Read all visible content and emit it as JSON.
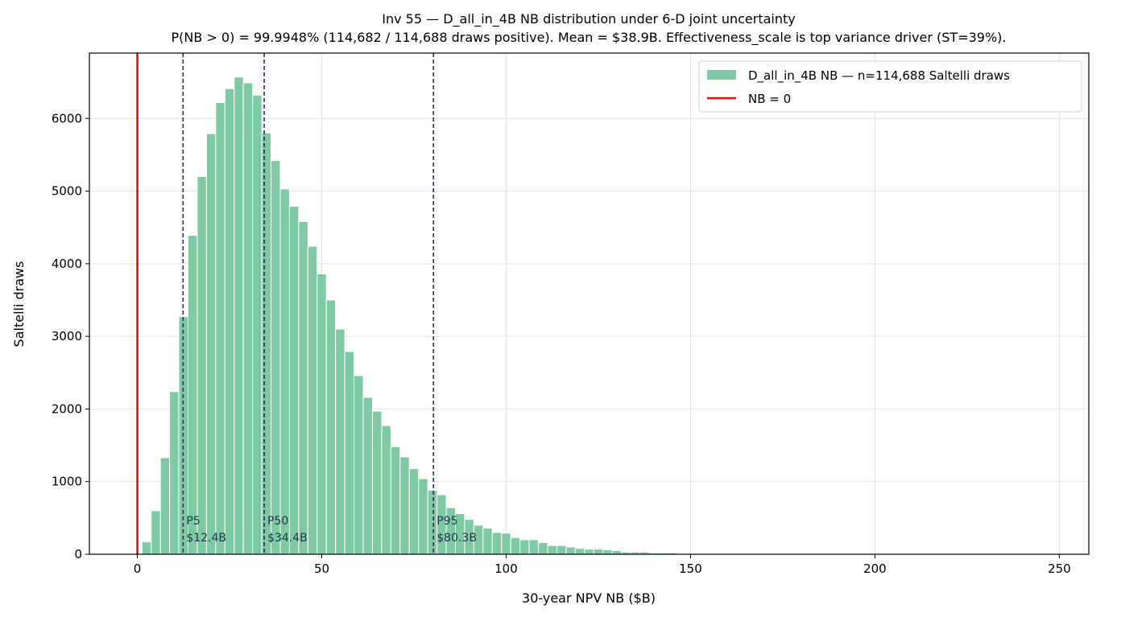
{
  "chart_data": {
    "type": "bar",
    "title": "Inv 55 — D_all_in_4B NB distribution under 6-D joint uncertainty",
    "subtitle": "P(NB > 0) = 99.9948% (114,682 / 114,688 draws positive). Mean = $38.9B. Effectiveness_scale is top variance driver (ST=39%).",
    "xlabel": "30-year NPV NB ($B)",
    "ylabel": "Saltelli draws",
    "xlim": [
      -13,
      258
    ],
    "ylim": [
      0,
      6900
    ],
    "xticks": [
      0,
      50,
      100,
      150,
      200,
      250
    ],
    "yticks": [
      0,
      1000,
      2000,
      3000,
      4000,
      5000,
      6000
    ],
    "grid": true,
    "legend_position": "top-right",
    "bin_width": 2.5,
    "series": [
      {
        "name": "D_all_in_4B NB — n=114,688 Saltelli draws",
        "color": "#7ecaa3",
        "bins_start": [
          1.25,
          3.75,
          6.25,
          8.75,
          11.25,
          13.75,
          16.25,
          18.75,
          21.25,
          23.75,
          26.25,
          28.75,
          31.25,
          33.75,
          36.25,
          38.75,
          41.25,
          43.75,
          46.25,
          48.75,
          51.25,
          53.75,
          56.25,
          58.75,
          61.25,
          63.75,
          66.25,
          68.75,
          71.25,
          73.75,
          76.25,
          78.75,
          81.25,
          83.75,
          86.25,
          88.75,
          91.25,
          93.75,
          96.25,
          98.75,
          101.25,
          103.75,
          106.25,
          108.75,
          111.25,
          113.75,
          116.25,
          118.75,
          121.25,
          123.75,
          126.25,
          128.75,
          131.25,
          133.75,
          136.25,
          138.75,
          141.25,
          143.75
        ],
        "values": [
          170,
          600,
          1330,
          2240,
          3270,
          4390,
          5200,
          5790,
          6220,
          6410,
          6570,
          6490,
          6320,
          5800,
          5420,
          5030,
          4790,
          4580,
          4240,
          3860,
          3500,
          3100,
          2790,
          2460,
          2160,
          1970,
          1770,
          1480,
          1340,
          1180,
          1040,
          880,
          820,
          640,
          560,
          480,
          400,
          360,
          300,
          290,
          230,
          200,
          200,
          160,
          120,
          120,
          100,
          80,
          70,
          70,
          60,
          50,
          30,
          30,
          30,
          20,
          20,
          20
        ]
      }
    ],
    "reference_lines": [
      {
        "name": "NB = 0",
        "x": 0,
        "color": "#ff0000"
      }
    ],
    "percentiles": [
      {
        "label": "P5",
        "value_label": "$12.4B",
        "x": 12.4
      },
      {
        "label": "P50",
        "value_label": "$34.4B",
        "x": 34.4
      },
      {
        "label": "P95",
        "value_label": "$80.3B",
        "x": 80.3
      }
    ],
    "percentile_color": "#23364d"
  }
}
